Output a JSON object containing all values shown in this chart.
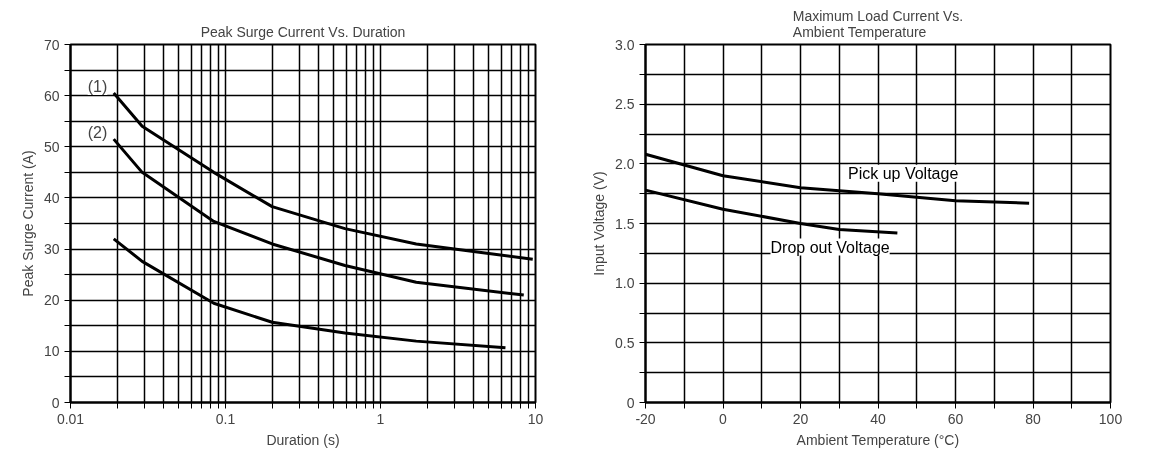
{
  "chart_data": [
    {
      "type": "line",
      "title": "Peak Surge Current Vs. Duration",
      "xlabel": "Duration (s)",
      "ylabel": "Peak Surge Current (A)",
      "log": "x",
      "xlim": [
        0.01,
        10
      ],
      "ylim": [
        0,
        70
      ],
      "xticks": [
        {
          "value": 0.01,
          "label": "0.01"
        },
        {
          "value": 0.02,
          "label": null
        },
        {
          "value": 0.03,
          "label": null
        },
        {
          "value": 0.04,
          "label": null
        },
        {
          "value": 0.05,
          "label": null
        },
        {
          "value": 0.06,
          "label": null
        },
        {
          "value": 0.07,
          "label": null
        },
        {
          "value": 0.08,
          "label": null
        },
        {
          "value": 0.09,
          "label": null
        },
        {
          "value": 0.1,
          "label": "0.1"
        },
        {
          "value": 0.2,
          "label": null
        },
        {
          "value": 0.3,
          "label": null
        },
        {
          "value": 0.4,
          "label": null
        },
        {
          "value": 0.5,
          "label": null
        },
        {
          "value": 0.6,
          "label": null
        },
        {
          "value": 0.7,
          "label": null
        },
        {
          "value": 0.8,
          "label": null
        },
        {
          "value": 0.9,
          "label": null
        },
        {
          "value": 1,
          "label": "1"
        },
        {
          "value": 2,
          "label": null
        },
        {
          "value": 3,
          "label": null
        },
        {
          "value": 4,
          "label": null
        },
        {
          "value": 5,
          "label": null
        },
        {
          "value": 6,
          "label": null
        },
        {
          "value": 7,
          "label": null
        },
        {
          "value": 8,
          "label": null
        },
        {
          "value": 9,
          "label": null
        },
        {
          "value": 10,
          "label": "10"
        }
      ],
      "yticks": [
        0,
        {
          "value": 5,
          "label": null
        },
        10,
        {
          "value": 15,
          "label": null
        },
        20,
        {
          "value": 25,
          "label": null
        },
        30,
        {
          "value": 35,
          "label": null
        },
        40,
        {
          "value": 45,
          "label": null
        },
        50,
        {
          "value": 55,
          "label": null
        },
        60,
        {
          "value": 65,
          "label": null
        },
        70
      ],
      "grid": true,
      "line_style": "solid",
      "marker": "none",
      "series": [
        {
          "color": "#000000",
          "x": [
            0.019,
            0.029,
            0.084,
            0.2,
            0.59,
            1.7,
            9.6
          ],
          "values": [
            60.5,
            54,
            45,
            38.3,
            34,
            31,
            28
          ]
        },
        {
          "color": "#000000",
          "x": [
            0.019,
            0.029,
            0.084,
            0.2,
            0.59,
            1.7,
            8.4
          ],
          "values": [
            51.5,
            45,
            35.4,
            31,
            26.8,
            23.5,
            21
          ]
        },
        {
          "color": "#000000",
          "x": [
            0.019,
            0.029,
            0.084,
            0.2,
            0.59,
            1.7,
            6.4
          ],
          "values": [
            32,
            27.6,
            19.4,
            15.7,
            13.6,
            12,
            10.7
          ]
        }
      ],
      "annotations": [
        {
          "text": "(1)",
          "x": 0.019,
          "y": 60.5
        },
        {
          "text": "(2)",
          "x": 0.019,
          "y": 51.5
        }
      ]
    },
    {
      "type": "line",
      "title": "Maximum Load Current Vs.\nAmbient Temperature",
      "xlabel": "Ambient Temperature (°C)",
      "ylabel": "Input Voltage (V)",
      "xlim": [
        -20,
        100
      ],
      "ylim": [
        0,
        3
      ],
      "xticks": [
        -20,
        {
          "value": -10,
          "label": null
        },
        0,
        {
          "value": 10,
          "label": null
        },
        20,
        {
          "value": 30,
          "label": null
        },
        40,
        {
          "value": 50,
          "label": null
        },
        60,
        {
          "value": 70,
          "label": null
        },
        80,
        {
          "value": 90,
          "label": null
        },
        100
      ],
      "yticks": [
        {
          "value": 0,
          "label": "0"
        },
        {
          "value": 0.25,
          "label": null
        },
        {
          "value": 0.5,
          "label": "0.5"
        },
        {
          "value": 0.75,
          "label": null
        },
        {
          "value": 1,
          "label": "1.0"
        },
        {
          "value": 1.25,
          "label": null
        },
        {
          "value": 1.5,
          "label": "1.5"
        },
        {
          "value": 1.75,
          "label": null
        },
        {
          "value": 2,
          "label": "2.0"
        },
        {
          "value": 2.25,
          "label": null
        },
        {
          "value": 2.5,
          "label": "2.5"
        },
        {
          "value": 2.75,
          "label": null
        },
        {
          "value": 3,
          "label": "3.0"
        }
      ],
      "grid": true,
      "line_style": "solid",
      "marker": "none",
      "series": [
        {
          "name": "Pick up Voltage",
          "color": "#000000",
          "x": [
            -20,
            0,
            20,
            40,
            60,
            79
          ],
          "values": [
            2.08,
            1.9,
            1.8,
            1.75,
            1.69,
            1.67
          ]
        },
        {
          "name": "Drop out Voltage",
          "color": "#000000",
          "x": [
            -20,
            0,
            20,
            30,
            45
          ],
          "values": [
            1.78,
            1.62,
            1.5,
            1.45,
            1.42
          ]
        }
      ]
    }
  ]
}
